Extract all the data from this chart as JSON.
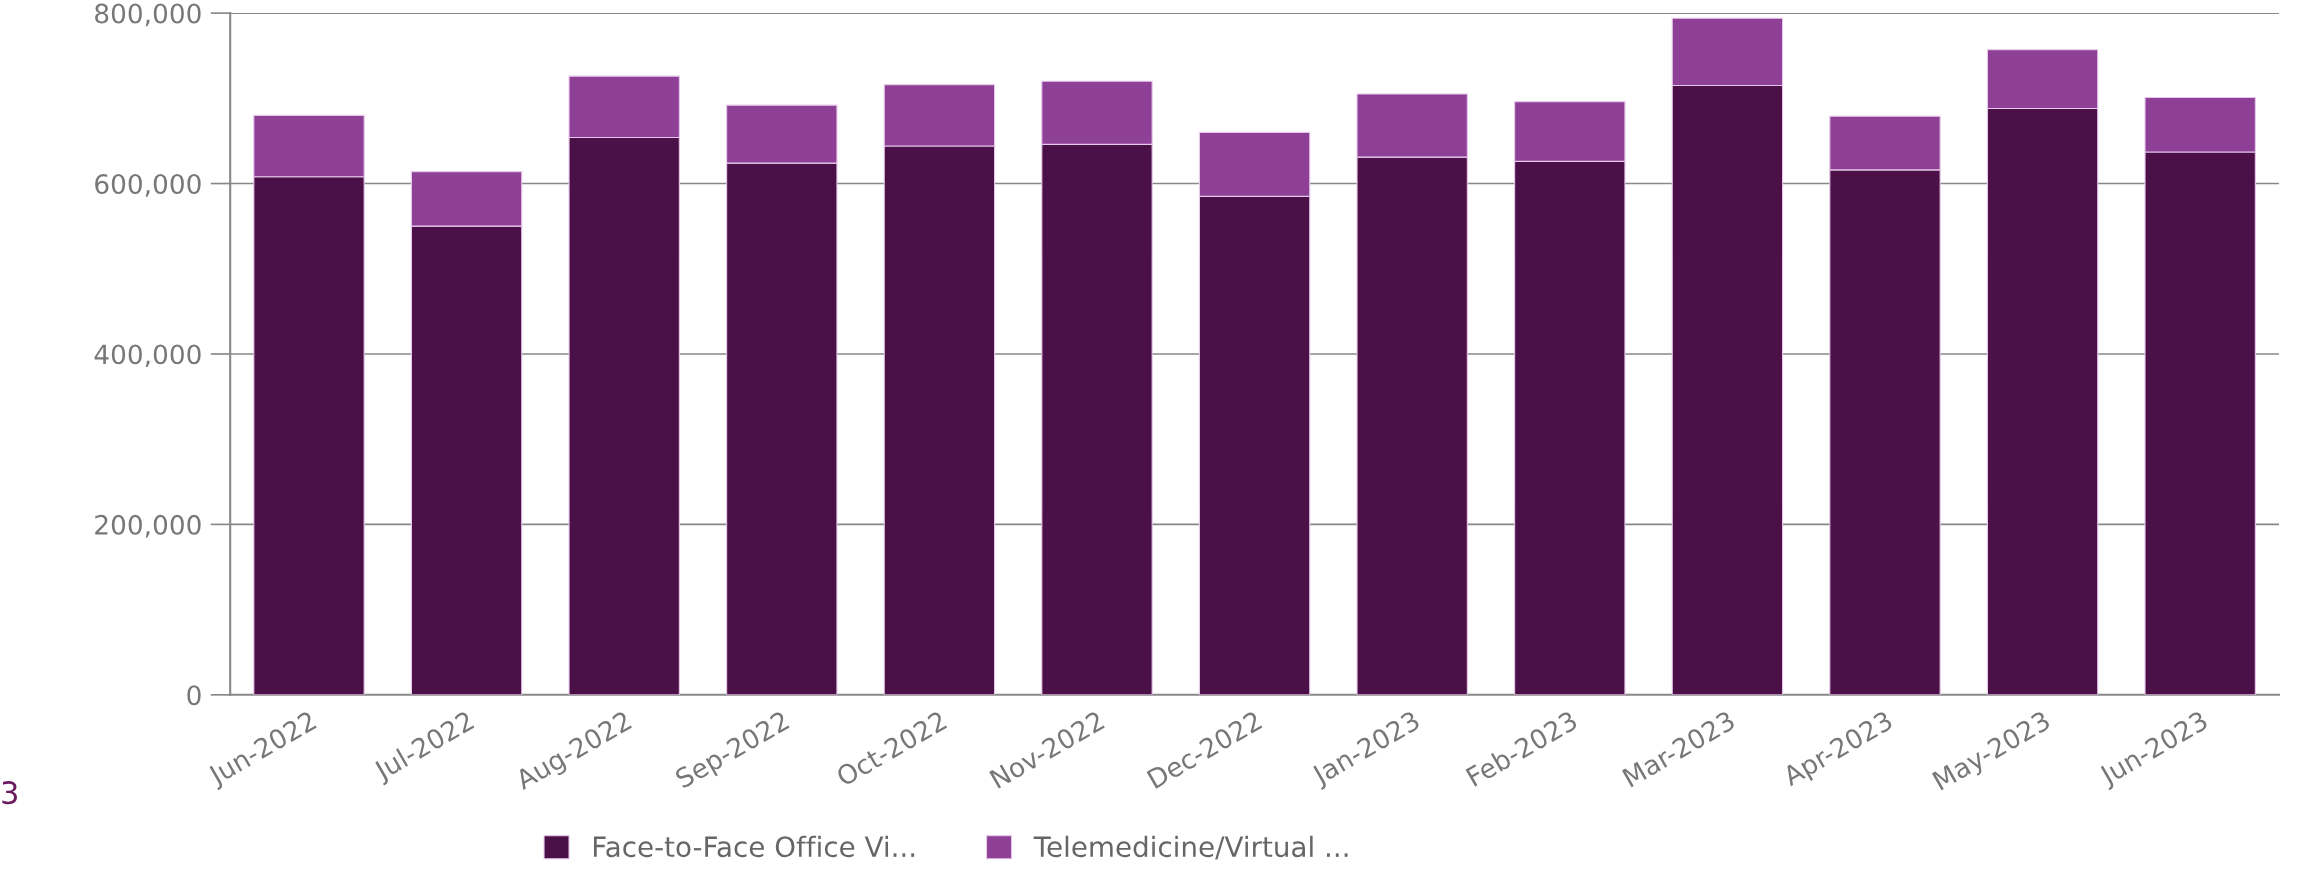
{
  "chart_data": {
    "type": "bar",
    "stacked": true,
    "categories": [
      "Jun-2022",
      "Jul-2022",
      "Aug-2022",
      "Sep-2022",
      "Oct-2022",
      "Nov-2022",
      "Dec-2022",
      "Jan-2023",
      "Feb-2023",
      "Mar-2023",
      "Apr-2023",
      "May-2023",
      "Jun-2023"
    ],
    "series": [
      {
        "name": "Face-to-Face Office Vi...",
        "color": "#4c1048",
        "values": [
          608000,
          550000,
          654000,
          624000,
          644000,
          646000,
          585000,
          631000,
          626000,
          715000,
          616000,
          688000,
          637000
        ]
      },
      {
        "name": "Telemedicine/Virtual ...",
        "color": "#8e4097",
        "values": [
          72000,
          64000,
          72000,
          68000,
          72000,
          74000,
          75000,
          74000,
          70000,
          79000,
          63000,
          69000,
          64000
        ]
      }
    ],
    "ylim": [
      0,
      800000
    ],
    "yticks": [
      {
        "value": 0,
        "label": "0"
      },
      {
        "value": 200000,
        "label": "200,000"
      },
      {
        "value": 400000,
        "label": "400,000"
      },
      {
        "value": 600000,
        "label": "600,000"
      },
      {
        "value": 800000,
        "label": "800,000"
      }
    ],
    "grid": "y",
    "legend": "bottom",
    "annotations": [
      "3"
    ]
  }
}
